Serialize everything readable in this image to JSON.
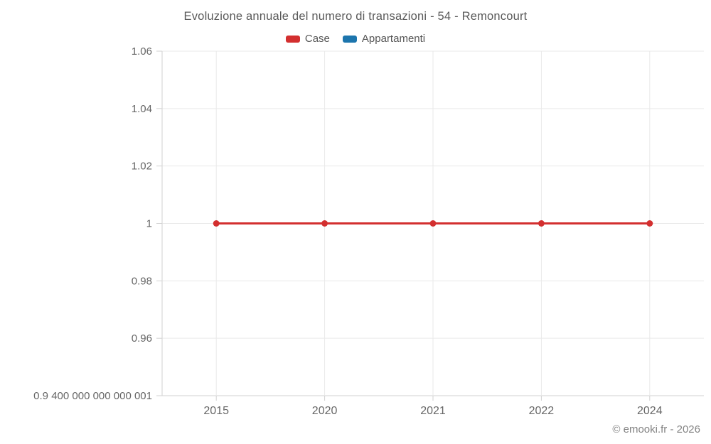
{
  "chart_data": {
    "type": "line",
    "title": "Evoluzione annuale del numero di transazioni - 54 - Remoncourt",
    "categories": [
      "2015",
      "2020",
      "2021",
      "2022",
      "2024"
    ],
    "series": [
      {
        "name": "Case",
        "color": "#d32f2f",
        "values": [
          1,
          1,
          1,
          1,
          1
        ]
      },
      {
        "name": "Appartamenti",
        "color": "#1c75ad",
        "values": []
      }
    ],
    "yticks": [
      1.06,
      1.04,
      1.02,
      1,
      0.98,
      0.96,
      0.9400000000000001
    ],
    "ytick_labels": [
      "1.06",
      "1.04",
      "1.02",
      "1",
      "0.98",
      "0.96",
      "0.9 400 000 000 000 001"
    ],
    "ylim": [
      0.9400000000000001,
      1.06
    ],
    "grid": true,
    "legend_position": "top"
  },
  "footer": {
    "copyright": "© emooki.fr - 2026"
  },
  "colors": {
    "background": "#ffffff",
    "grid": "#e9e9e9",
    "axis": "#d2d2d2",
    "tick_label": "#666666",
    "title": "#595959",
    "legend_label": "#555555",
    "footer": "#838383"
  }
}
